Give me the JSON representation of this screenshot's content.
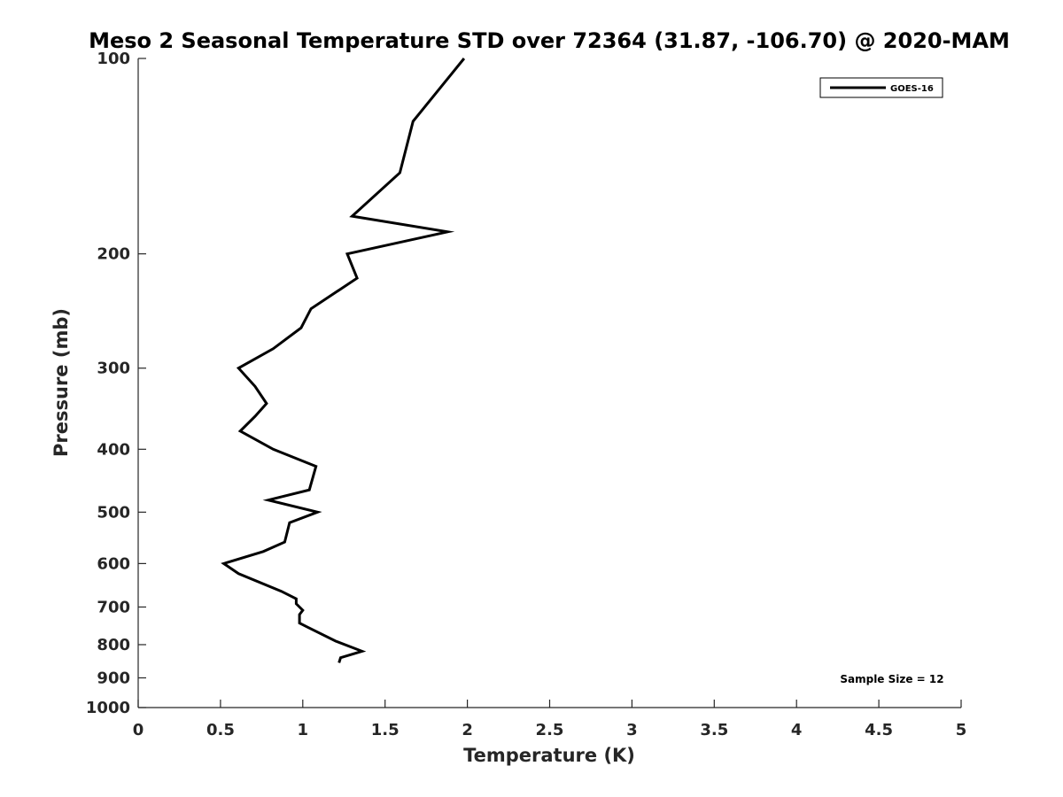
{
  "chart_data": {
    "type": "line",
    "title": "Meso 2 Seasonal Temperature STD over 72364 (31.87, -106.70) @ 2020-MAM",
    "xlabel": "Temperature (K)",
    "ylabel": "Pressure (mb)",
    "xlim": [
      0,
      5
    ],
    "ylim": [
      100,
      1000
    ],
    "y_scale": "log",
    "y_reversed": true,
    "grid": false,
    "legend_position": "top-right",
    "x_ticks": [
      0,
      0.5,
      1,
      1.5,
      2,
      2.5,
      3,
      3.5,
      4,
      4.5,
      5
    ],
    "x_tick_labels": [
      "0",
      "0.5",
      "1",
      "1.5",
      "2",
      "2.5",
      "3",
      "3.5",
      "4",
      "4.5",
      "5"
    ],
    "y_ticks": [
      100,
      200,
      300,
      400,
      500,
      600,
      700,
      800,
      900,
      1000
    ],
    "y_tick_labels": [
      "100",
      "200",
      "300",
      "400",
      "500",
      "600",
      "700",
      "800",
      "900",
      "1000"
    ],
    "series": [
      {
        "name": "GOES-16",
        "color": "#000000",
        "points": [
          {
            "x": 1.98,
            "p": 100
          },
          {
            "x": 1.67,
            "p": 125
          },
          {
            "x": 1.59,
            "p": 150
          },
          {
            "x": 1.3,
            "p": 175
          },
          {
            "x": 1.88,
            "p": 185
          },
          {
            "x": 1.27,
            "p": 200
          },
          {
            "x": 1.33,
            "p": 218
          },
          {
            "x": 1.05,
            "p": 243
          },
          {
            "x": 0.99,
            "p": 260
          },
          {
            "x": 0.82,
            "p": 280
          },
          {
            "x": 0.61,
            "p": 300
          },
          {
            "x": 0.71,
            "p": 320
          },
          {
            "x": 0.78,
            "p": 340
          },
          {
            "x": 0.71,
            "p": 356
          },
          {
            "x": 0.62,
            "p": 375
          },
          {
            "x": 0.82,
            "p": 400
          },
          {
            "x": 1.08,
            "p": 425
          },
          {
            "x": 1.04,
            "p": 462
          },
          {
            "x": 0.79,
            "p": 479
          },
          {
            "x": 1.09,
            "p": 500
          },
          {
            "x": 0.92,
            "p": 519
          },
          {
            "x": 0.89,
            "p": 556
          },
          {
            "x": 0.76,
            "p": 575
          },
          {
            "x": 0.52,
            "p": 600
          },
          {
            "x": 0.61,
            "p": 622
          },
          {
            "x": 0.87,
            "p": 662
          },
          {
            "x": 0.96,
            "p": 680
          },
          {
            "x": 0.96,
            "p": 692
          },
          {
            "x": 1.0,
            "p": 708
          },
          {
            "x": 0.98,
            "p": 719
          },
          {
            "x": 0.98,
            "p": 741
          },
          {
            "x": 1.03,
            "p": 752
          },
          {
            "x": 1.2,
            "p": 790
          },
          {
            "x": 1.36,
            "p": 819
          },
          {
            "x": 1.23,
            "p": 838
          },
          {
            "x": 1.22,
            "p": 853
          }
        ]
      }
    ],
    "annotation": "Sample Size = 12"
  }
}
